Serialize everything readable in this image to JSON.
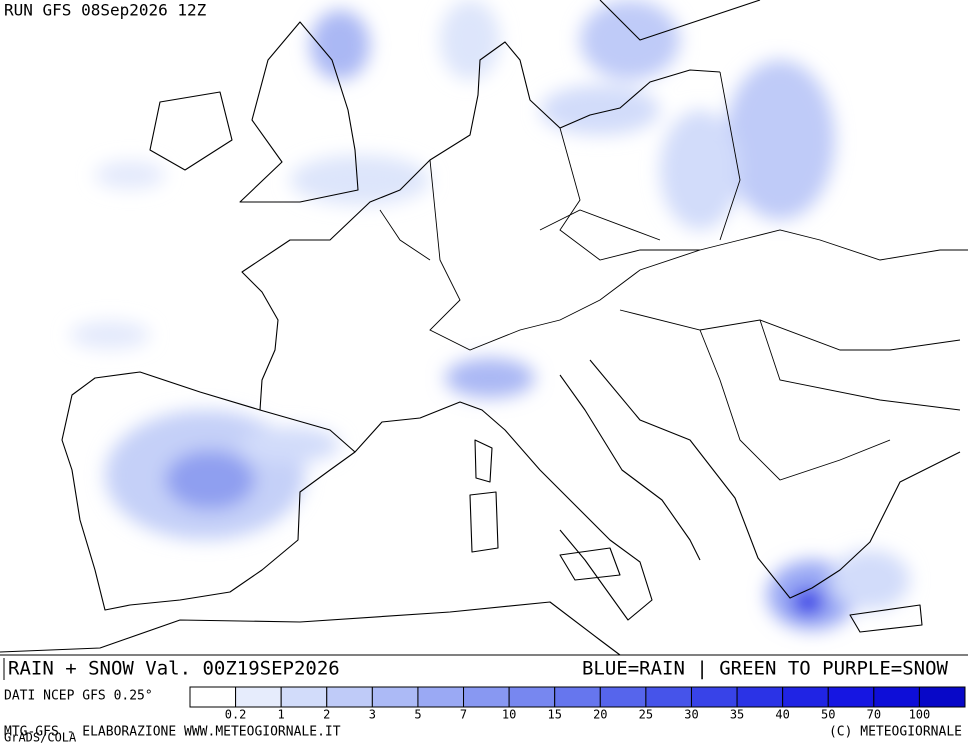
{
  "header": {
    "run": "RUN GFS 08Sep2026 12Z"
  },
  "legend": {
    "title": "RAIN + SNOW Val. 00Z19SEP2026",
    "subtitle": "BLUE=RAIN | GREEN TO PURPLE=SNOW"
  },
  "colorbar": {
    "label": "DATI NCEP GFS 0.25°",
    "ticks": [
      "0.2",
      "1",
      "2",
      "3",
      "5",
      "7",
      "10",
      "15",
      "20",
      "25",
      "30",
      "35",
      "40",
      "50",
      "70",
      "100"
    ],
    "colors": [
      "#ffffff",
      "#e6ecfc",
      "#d2dcfa",
      "#bfcbf8",
      "#acbaf6",
      "#9aa9f4",
      "#8898f2",
      "#7787f0",
      "#6676ee",
      "#5665ec",
      "#4654ea",
      "#3843e8",
      "#2b33e6",
      "#2024e4",
      "#1616e2",
      "#0e0ed8",
      "#0808c8"
    ]
  },
  "footer": {
    "left": "MTG-GFS - ELABORAZIONE WWW.METEOGIORNALE.IT",
    "right": "(C) METEOGIORNALE",
    "credit": "GrADS/COLA"
  }
}
